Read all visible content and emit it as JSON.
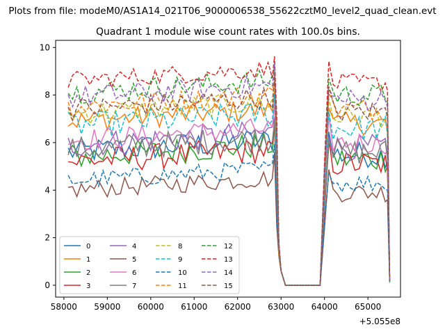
{
  "figure_title": "Plots from file: modeM0/AS1A14_021T06_9000006538_55622cztM0_level2_quad_clean.evt",
  "chart_data": {
    "type": "line",
    "title": "Quadrant 1 module wise count rates with 100.0s bins.",
    "xlabel": "",
    "ylabel": "",
    "x_offset_label": "+5.055e8",
    "xlim": [
      57810,
      65750
    ],
    "ylim": [
      -0.5,
      10.3
    ],
    "x_ticks": [
      58000,
      59000,
      60000,
      61000,
      62000,
      63000,
      64000,
      65000
    ],
    "y_ticks": [
      0,
      2,
      4,
      6,
      8,
      10
    ],
    "grid": false,
    "legend_position": "lower-left",
    "x_unit": "s (offset from 505500000)",
    "series_shape": {
      "segment1_x": [
        58100,
        62800
      ],
      "drop_x": [
        62900,
        63100
      ],
      "gap_zero_x": [
        63100,
        63900
      ],
      "rise_x": [
        63900,
        64100
      ],
      "segment2_x": [
        64100,
        65400
      ],
      "end_drop_x": [
        65400,
        65500
      ]
    },
    "series": [
      {
        "name": "0",
        "color": "#1f77b4",
        "dash": false,
        "mean": 5.6,
        "noise": 0.35
      },
      {
        "name": "1",
        "color": "#ff7f0e",
        "dash": false,
        "mean": 6.9,
        "noise": 0.3
      },
      {
        "name": "2",
        "color": "#2ca02c",
        "dash": false,
        "mean": 5.4,
        "noise": 0.35
      },
      {
        "name": "3",
        "color": "#d62728",
        "dash": false,
        "mean": 5.2,
        "noise": 0.35
      },
      {
        "name": "4",
        "color": "#9467bd",
        "dash": false,
        "mean": 5.9,
        "noise": 0.35
      },
      {
        "name": "5",
        "color": "#8c564b",
        "dash": false,
        "mean": 4.0,
        "noise": 0.25
      },
      {
        "name": "6",
        "color": "#e377c2",
        "dash": false,
        "mean": 6.1,
        "noise": 0.3
      },
      {
        "name": "7",
        "color": "#7f7f7f",
        "dash": false,
        "mean": 5.7,
        "noise": 0.35
      },
      {
        "name": "8",
        "color": "#bcbd22",
        "dash": true,
        "mean": 7.2,
        "noise": 0.3
      },
      {
        "name": "9",
        "color": "#17becf",
        "dash": true,
        "mean": 6.7,
        "noise": 0.35
      },
      {
        "name": "10",
        "color": "#1f77b4",
        "dash": true,
        "mean": 4.4,
        "noise": 0.25
      },
      {
        "name": "11",
        "color": "#ff7f0e",
        "dash": true,
        "mean": 7.5,
        "noise": 0.3
      },
      {
        "name": "12",
        "color": "#2ca02c",
        "dash": true,
        "mean": 8.1,
        "noise": 0.3
      },
      {
        "name": "13",
        "color": "#d62728",
        "dash": true,
        "mean": 8.6,
        "noise": 0.25
      },
      {
        "name": "14",
        "color": "#9467bd",
        "dash": true,
        "mean": 7.9,
        "noise": 0.3
      },
      {
        "name": "15",
        "color": "#8c564b",
        "dash": true,
        "mean": 7.4,
        "noise": 0.3
      }
    ]
  }
}
